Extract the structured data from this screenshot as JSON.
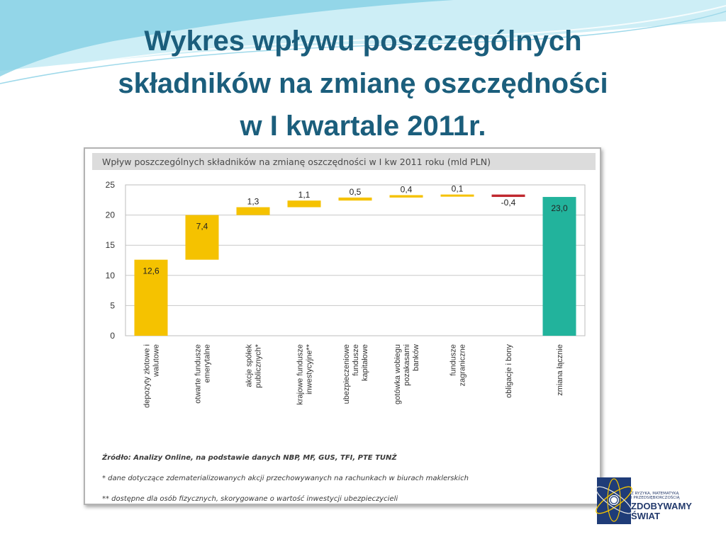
{
  "slide": {
    "title_lines": [
      "Wykres wpływu poszczególnych",
      "składników na zmianę oszczędności",
      "w I kwartale 2011r."
    ]
  },
  "colors": {
    "title": "#1b5e7c",
    "increase": "#f5c200",
    "decrease": "#c0282e",
    "total": "#22b39c",
    "chart_header_bg": "#dcdcdc",
    "wave_light": "#bfe6f1",
    "wave_mid": "#7fcde3"
  },
  "chart_data": {
    "type": "bar",
    "subtype": "waterfall",
    "title": "Wpływ poszczególnych składników na zmianę oszczędności w I kw 2011 roku (mld PLN)",
    "ylim": [
      0,
      25
    ],
    "yticks": [
      0,
      5,
      10,
      15,
      20,
      25
    ],
    "grid": true,
    "legend": "none",
    "categories": [
      [
        "depozyty złotowe i",
        "walutowe"
      ],
      [
        "otwarte fundusze",
        "emerytalne"
      ],
      [
        "akcje spółek",
        "publicznych*"
      ],
      [
        "krajowe fundusze",
        "inwestycyjne**"
      ],
      [
        "ubezpieczeniowe",
        "fundusze",
        "kapitałowe"
      ],
      [
        "gotówka wobiegu",
        "pozakasami",
        "banków"
      ],
      [
        "fundusze",
        "zagraniczne"
      ],
      [
        "obligacje i bony"
      ],
      [
        "zmiana łącznie"
      ]
    ],
    "values": [
      12.6,
      7.4,
      1.3,
      1.1,
      0.5,
      0.4,
      0.1,
      -0.4,
      23.0
    ],
    "labels": [
      "12,6",
      "7,4",
      "1,3",
      "1,1",
      "0,5",
      "0,4",
      "0,1",
      "-0,4",
      "23,0"
    ],
    "bar_kinds": [
      "increase",
      "increase",
      "increase",
      "increase",
      "increase",
      "increase",
      "increase",
      "decrease",
      "total"
    ],
    "notes": [
      "Źródło: Analizy Online, na podstawie danych NBP, MF, GUS, TFI, PTE TUNŻ",
      "* dane dotyczące zdematerializowanych akcji przechowywanych na rachunkach w biurach maklerskich",
      "** dostępne dla osób fizycznych, skorygowane o wartość inwestycji ubezpieczycieli"
    ]
  },
  "logo": {
    "tagline": [
      "Z RYZYKA, MATEMATYKĄ",
      "I PRZEDSIĘBIORCZOŚCIĄ"
    ],
    "name": [
      "ZDOBYWAMY",
      "ŚWIAT"
    ],
    "icon": "atom-logo-icon"
  }
}
